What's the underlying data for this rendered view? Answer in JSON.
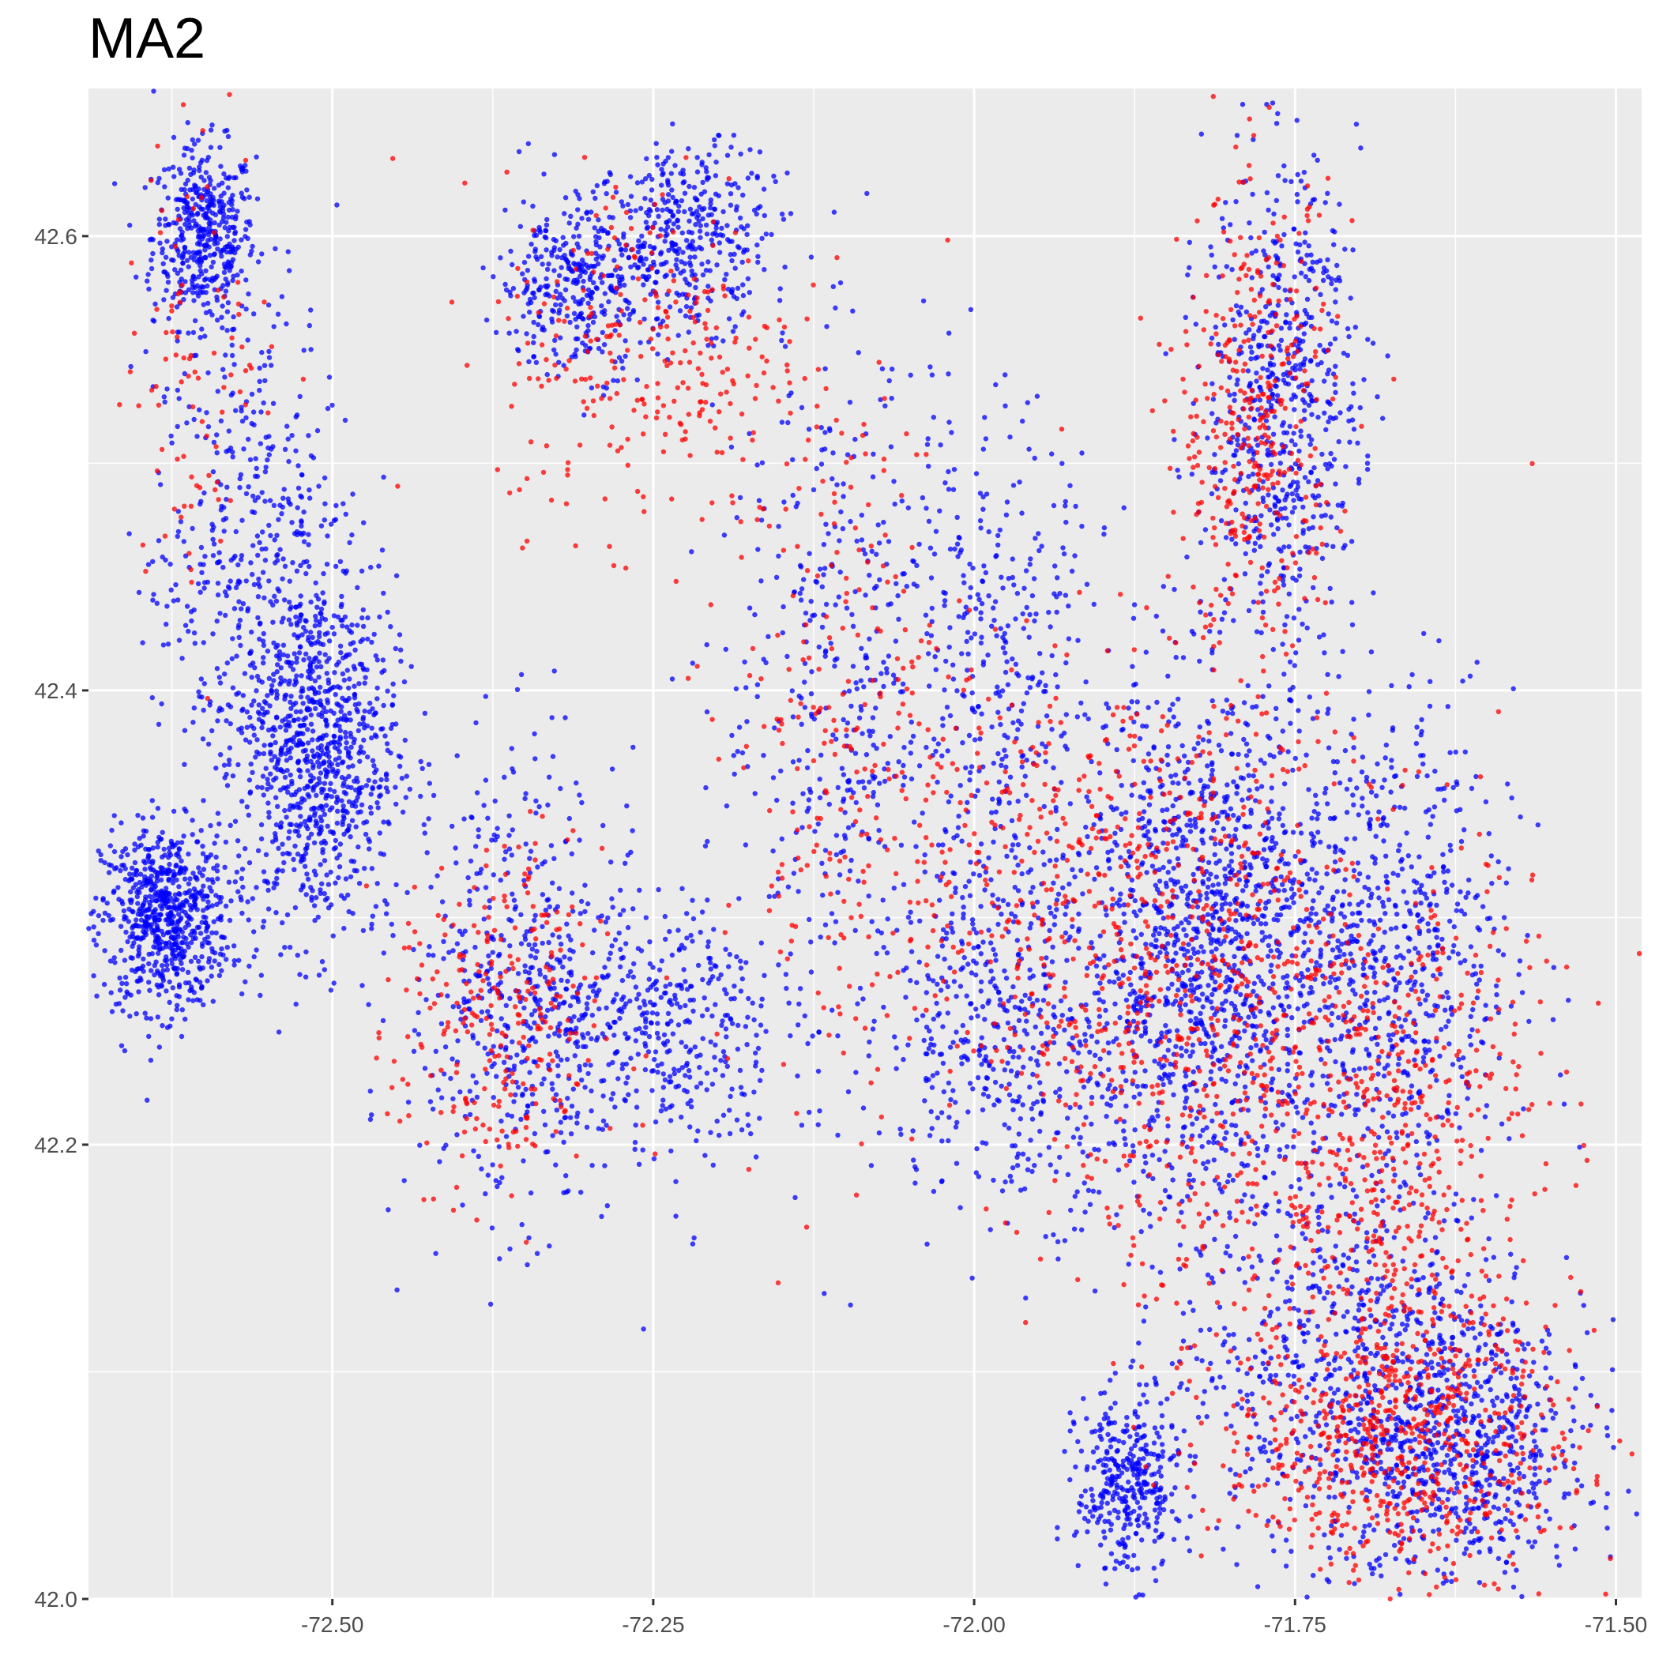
{
  "chart_data": {
    "type": "scatter",
    "title": "MA2",
    "xlabel": "",
    "ylabel": "",
    "xlim": [
      -72.69,
      -71.48
    ],
    "ylim": [
      42.0,
      42.665
    ],
    "x_ticks": [
      -72.5,
      -72.25,
      -72.0,
      -71.75,
      -71.5
    ],
    "x_tick_labels": [
      "-72.50",
      "-72.25",
      "-72.00",
      "-71.75",
      "-71.50"
    ],
    "y_ticks": [
      42.0,
      42.2,
      42.4,
      42.6
    ],
    "y_tick_labels": [
      "42.0",
      "42.2",
      "42.4",
      "42.6"
    ],
    "grid": true,
    "background": "#ebebeb",
    "gridline_color": "#ffffff",
    "series": [
      {
        "color": "#0000ff",
        "approx_density_clusters": [
          {
            "lon": -72.6,
            "lat": 42.6,
            "spread_lon": 0.02,
            "spread_lat": 0.02,
            "weight": 5
          },
          {
            "lon": -72.63,
            "lat": 42.3,
            "spread_lon": 0.025,
            "spread_lat": 0.02,
            "weight": 8
          },
          {
            "lon": -72.51,
            "lat": 42.37,
            "spread_lon": 0.03,
            "spread_lat": 0.04,
            "weight": 9
          },
          {
            "lon": -72.56,
            "lat": 42.45,
            "spread_lon": 0.04,
            "spread_lat": 0.06,
            "weight": 6
          },
          {
            "lon": -72.25,
            "lat": 42.25,
            "spread_lon": 0.05,
            "spread_lat": 0.03,
            "weight": 5
          },
          {
            "lon": -72.36,
            "lat": 42.27,
            "spread_lon": 0.04,
            "spread_lat": 0.05,
            "weight": 5
          },
          {
            "lon": -72.22,
            "lat": 42.6,
            "spread_lon": 0.03,
            "spread_lat": 0.02,
            "weight": 4
          },
          {
            "lon": -72.31,
            "lat": 42.58,
            "spread_lon": 0.03,
            "spread_lat": 0.02,
            "weight": 4
          },
          {
            "lon": -72.1,
            "lat": 42.4,
            "spread_lon": 0.05,
            "spread_lat": 0.08,
            "weight": 5
          },
          {
            "lon": -71.82,
            "lat": 42.29,
            "spread_lon": 0.05,
            "spread_lat": 0.06,
            "weight": 14
          },
          {
            "lon": -71.76,
            "lat": 42.53,
            "spread_lon": 0.03,
            "spread_lat": 0.05,
            "weight": 7
          },
          {
            "lon": -71.68,
            "lat": 42.28,
            "spread_lon": 0.05,
            "spread_lat": 0.06,
            "weight": 8
          },
          {
            "lon": -71.7,
            "lat": 42.1,
            "spread_lon": 0.07,
            "spread_lat": 0.04,
            "weight": 8
          },
          {
            "lon": -71.62,
            "lat": 42.06,
            "spread_lon": 0.05,
            "spread_lat": 0.03,
            "weight": 6
          },
          {
            "lon": -71.88,
            "lat": 42.05,
            "spread_lon": 0.02,
            "spread_lat": 0.02,
            "weight": 4
          },
          {
            "lon": -71.97,
            "lat": 42.25,
            "spread_lon": 0.05,
            "spread_lat": 0.04,
            "weight": 5
          },
          {
            "lon": -71.98,
            "lat": 42.4,
            "spread_lon": 0.04,
            "spread_lat": 0.06,
            "weight": 4
          }
        ]
      },
      {
        "color": "#ff0000",
        "approx_density_clusters": [
          {
            "lon": -71.78,
            "lat": 42.52,
            "spread_lon": 0.03,
            "spread_lat": 0.05,
            "weight": 4
          },
          {
            "lon": -71.82,
            "lat": 42.27,
            "spread_lon": 0.06,
            "spread_lat": 0.07,
            "weight": 6
          },
          {
            "lon": -71.68,
            "lat": 42.2,
            "spread_lon": 0.06,
            "spread_lat": 0.07,
            "weight": 7
          },
          {
            "lon": -71.67,
            "lat": 42.07,
            "spread_lon": 0.07,
            "spread_lat": 0.03,
            "weight": 7
          },
          {
            "lon": -72.37,
            "lat": 42.25,
            "spread_lon": 0.04,
            "spread_lat": 0.04,
            "weight": 3
          },
          {
            "lon": -72.25,
            "lat": 42.55,
            "spread_lon": 0.06,
            "spread_lat": 0.04,
            "weight": 3
          },
          {
            "lon": -72.1,
            "lat": 42.38,
            "spread_lon": 0.05,
            "spread_lat": 0.08,
            "weight": 3
          },
          {
            "lon": -71.95,
            "lat": 42.3,
            "spread_lon": 0.05,
            "spread_lat": 0.06,
            "weight": 3
          },
          {
            "lon": -72.6,
            "lat": 42.55,
            "spread_lon": 0.03,
            "spread_lat": 0.05,
            "weight": 1
          }
        ]
      }
    ]
  }
}
